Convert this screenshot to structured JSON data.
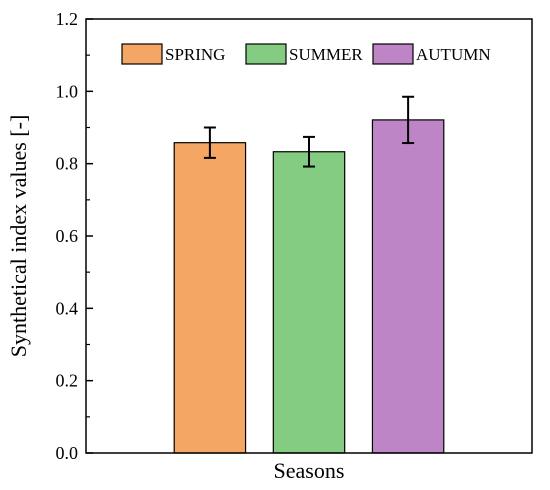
{
  "chart_data": {
    "type": "bar",
    "title": "",
    "xlabel": "Seasons",
    "ylabel": "Synthetical index values [-]",
    "ylim": [
      0.0,
      1.2
    ],
    "yticks": [
      "0.0",
      "0.2",
      "0.4",
      "0.6",
      "0.8",
      "1.0",
      "1.2"
    ],
    "categories": [
      "SPRING",
      "SUMMER",
      "AUTUMN"
    ],
    "values": [
      0.858,
      0.833,
      0.921
    ],
    "errors": [
      0.042,
      0.041,
      0.064
    ],
    "colors": [
      "#f4a765",
      "#84cc82",
      "#bd84c6"
    ],
    "legend": {
      "placement": "top",
      "entries": [
        "SPRING",
        "SUMMER",
        "AUTUMN"
      ]
    },
    "grid": false
  }
}
